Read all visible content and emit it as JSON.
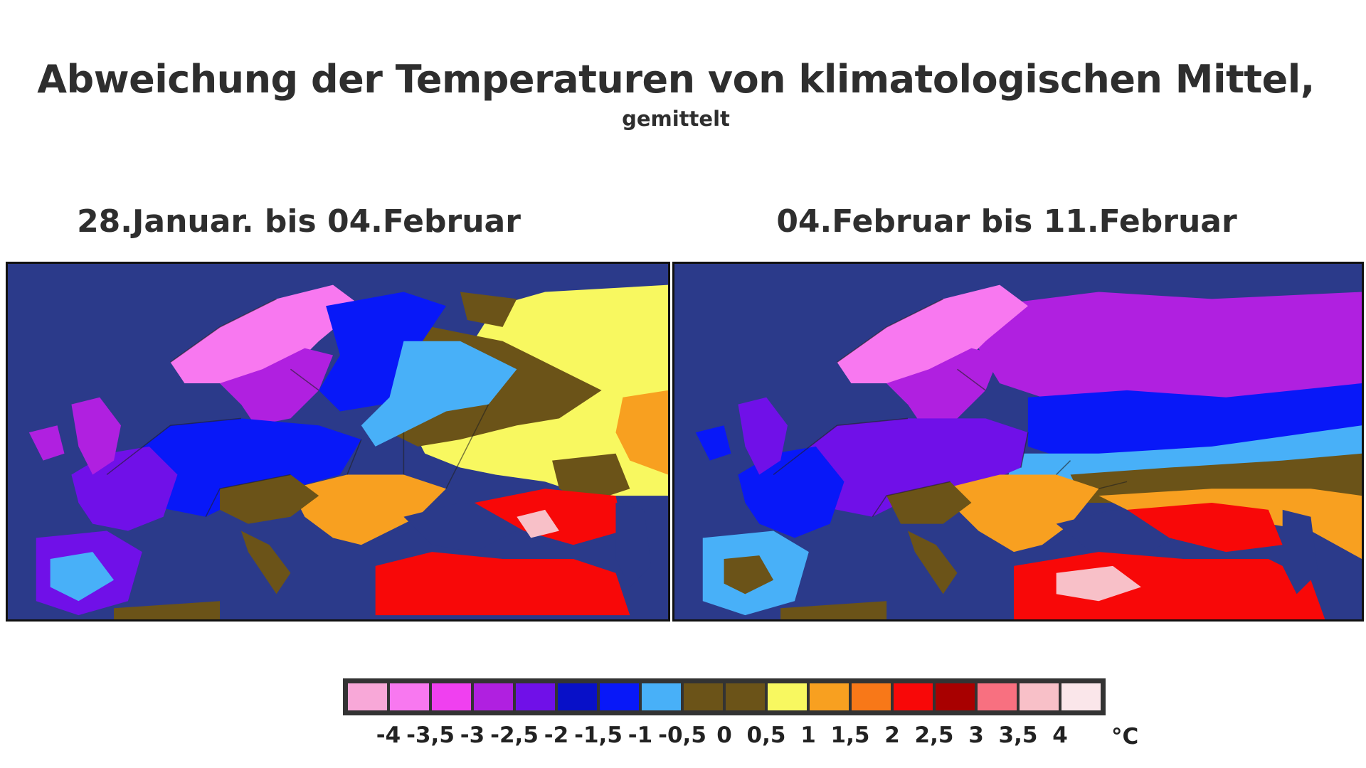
{
  "header": {
    "title": "Abweichung der Temperaturen von klimatologischen Mittel,",
    "subtitle": "gemittelt"
  },
  "panels": [
    {
      "label": "28.Januar. bis 04.Februar"
    },
    {
      "label": "04.Februar bis 11.Februar"
    }
  ],
  "legend": {
    "unit": "°C",
    "colors": [
      "#f8a8d8",
      "#f878f0",
      "#f040f0",
      "#b020e0",
      "#7010e8",
      "#0810c8",
      "#0818f8",
      "#48b0f8",
      "#6b5318",
      "#6b5318",
      "#f8f860",
      "#f8a020",
      "#f87818",
      "#f80808",
      "#a80000",
      "#f87080",
      "#f8c0c8",
      "#fae6ea"
    ],
    "ticks": [
      "-4",
      "-3,5",
      "-3",
      "-2,5",
      "-2",
      "-1,5",
      "-1",
      "-0,5",
      "0",
      "0,5",
      "1",
      "1,5",
      "2",
      "2,5",
      "3",
      "3,5",
      "4"
    ]
  },
  "colors": {
    "sea": "#2b3a8a",
    "border": "#111111"
  }
}
